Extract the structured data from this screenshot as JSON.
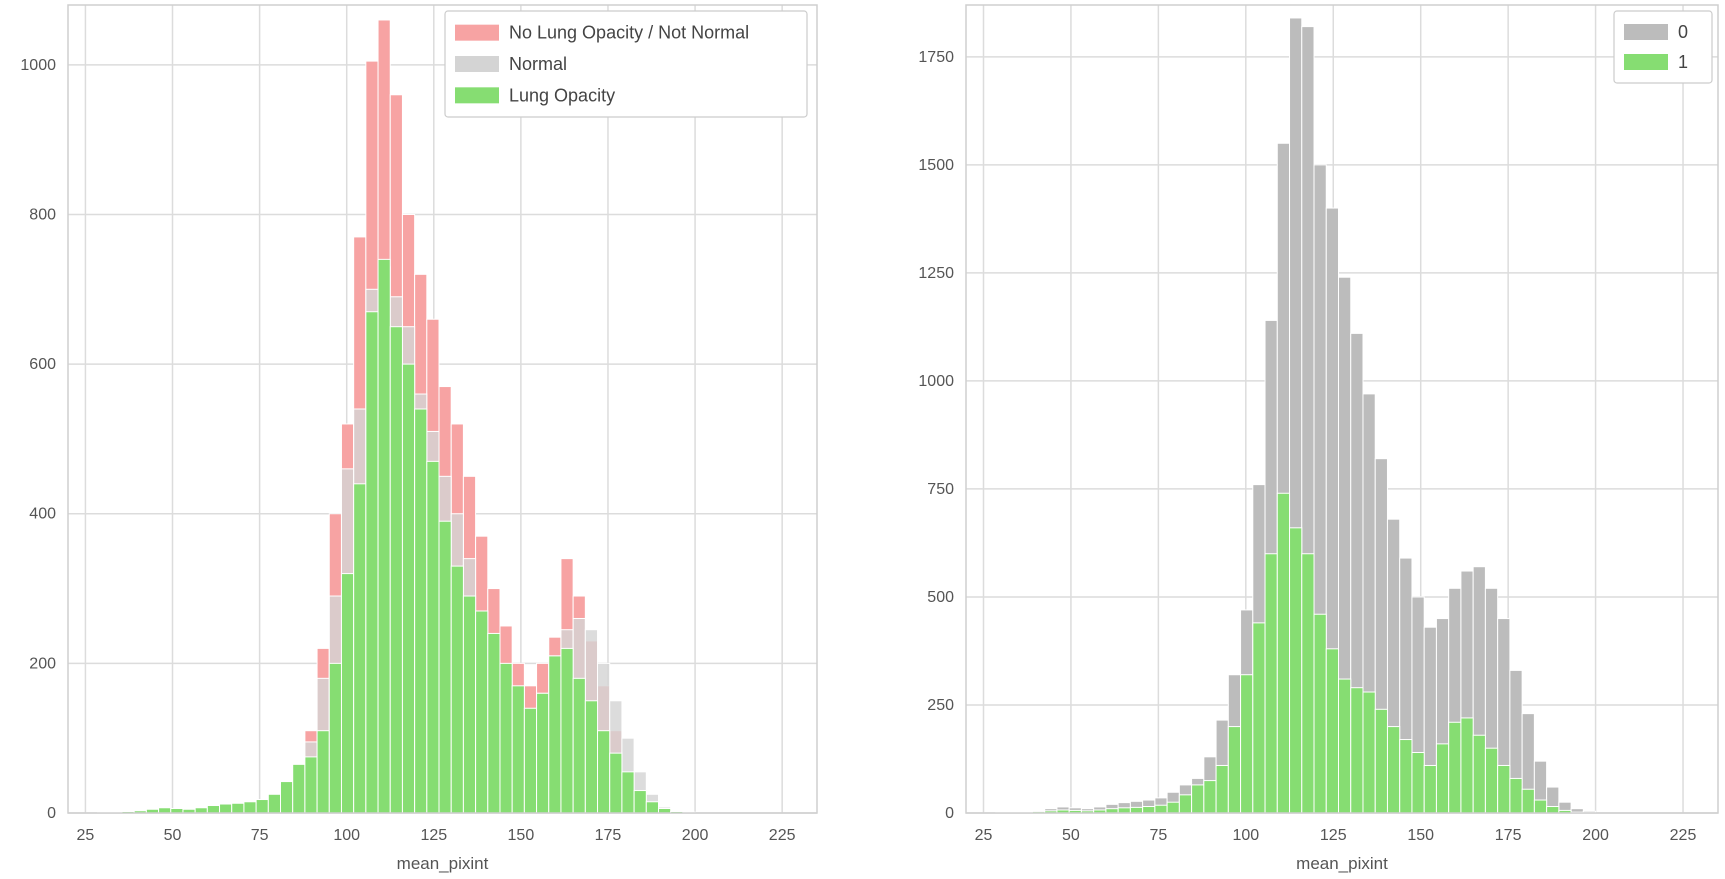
{
  "chart_data": [
    {
      "type": "bar",
      "subtype": "overlaid-histogram",
      "xlabel": "mean_pixint",
      "ylabel": "",
      "xlim": [
        20,
        235
      ],
      "ylim": [
        0,
        1080
      ],
      "xticks": [
        25,
        50,
        75,
        100,
        125,
        150,
        175,
        200,
        225
      ],
      "yticks": [
        0,
        200,
        400,
        600,
        800,
        1000
      ],
      "grid": true,
      "legend_position": "top-right",
      "bin_start": 25,
      "bin_width": 3.5,
      "series": [
        {
          "name": "No Lung Opacity / Not Normal",
          "color": "#f7a3a3",
          "values": [
            0,
            1,
            1,
            2,
            3,
            5,
            7,
            6,
            5,
            7,
            10,
            12,
            13,
            15,
            18,
            25,
            42,
            65,
            110,
            220,
            400,
            520,
            770,
            1005,
            1060,
            960,
            800,
            720,
            660,
            570,
            520,
            450,
            370,
            300,
            250,
            200,
            170,
            200,
            235,
            340,
            290,
            230,
            170,
            110,
            55,
            25,
            8,
            3,
            1,
            0,
            0,
            0,
            0,
            0,
            0,
            0,
            0,
            0,
            0,
            0,
            0
          ]
        },
        {
          "name": "Normal",
          "color": "#d4d4d4",
          "values": [
            0,
            1,
            1,
            2,
            3,
            5,
            7,
            6,
            5,
            7,
            10,
            12,
            13,
            15,
            18,
            25,
            42,
            65,
            95,
            180,
            290,
            460,
            540,
            700,
            730,
            690,
            650,
            560,
            510,
            450,
            400,
            340,
            270,
            200,
            160,
            140,
            110,
            160,
            210,
            245,
            260,
            245,
            200,
            150,
            100,
            55,
            25,
            8,
            3,
            1,
            0,
            0,
            0,
            0,
            0,
            0,
            0,
            0,
            0,
            0,
            0
          ]
        },
        {
          "name": "Lung Opacity",
          "color": "#86dd72",
          "values": [
            0,
            1,
            1,
            2,
            3,
            5,
            7,
            6,
            5,
            7,
            10,
            12,
            13,
            15,
            18,
            25,
            42,
            65,
            75,
            110,
            200,
            320,
            440,
            670,
            740,
            650,
            600,
            540,
            470,
            390,
            330,
            290,
            270,
            240,
            200,
            170,
            140,
            160,
            210,
            220,
            180,
            150,
            110,
            80,
            55,
            30,
            15,
            6,
            2,
            1,
            0,
            0,
            0,
            0,
            0,
            0,
            0,
            0,
            0,
            0,
            0
          ]
        }
      ]
    },
    {
      "type": "bar",
      "subtype": "overlaid-histogram",
      "xlabel": "mean_pixint",
      "ylabel": "",
      "xlim": [
        20,
        235
      ],
      "ylim": [
        0,
        1870
      ],
      "xticks": [
        25,
        50,
        75,
        100,
        125,
        150,
        175,
        200,
        225
      ],
      "yticks": [
        0,
        250,
        500,
        750,
        1000,
        1250,
        1500,
        1750
      ],
      "grid": true,
      "legend_position": "top-right",
      "bin_start": 25,
      "bin_width": 3.5,
      "series": [
        {
          "name": "0",
          "color": "#bcbcbc",
          "values": [
            0,
            2,
            2,
            3,
            5,
            10,
            14,
            12,
            10,
            14,
            20,
            24,
            27,
            30,
            35,
            48,
            65,
            80,
            130,
            215,
            320,
            470,
            760,
            1140,
            1550,
            1840,
            1820,
            1500,
            1400,
            1240,
            1110,
            970,
            820,
            680,
            590,
            500,
            430,
            450,
            520,
            560,
            570,
            520,
            450,
            330,
            230,
            120,
            60,
            25,
            10,
            4,
            0,
            0,
            0,
            0,
            0,
            0,
            0,
            0,
            0,
            0,
            0
          ]
        },
        {
          "name": "1",
          "color": "#86dd72",
          "values": [
            0,
            1,
            1,
            2,
            3,
            5,
            7,
            6,
            5,
            7,
            10,
            12,
            13,
            15,
            18,
            25,
            42,
            65,
            75,
            110,
            200,
            320,
            440,
            600,
            740,
            660,
            600,
            460,
            380,
            310,
            290,
            280,
            240,
            200,
            170,
            140,
            110,
            160,
            210,
            220,
            180,
            150,
            110,
            80,
            55,
            30,
            15,
            6,
            2,
            1,
            0,
            0,
            0,
            0,
            0,
            0,
            0,
            0,
            0,
            0,
            0
          ]
        }
      ]
    }
  ]
}
